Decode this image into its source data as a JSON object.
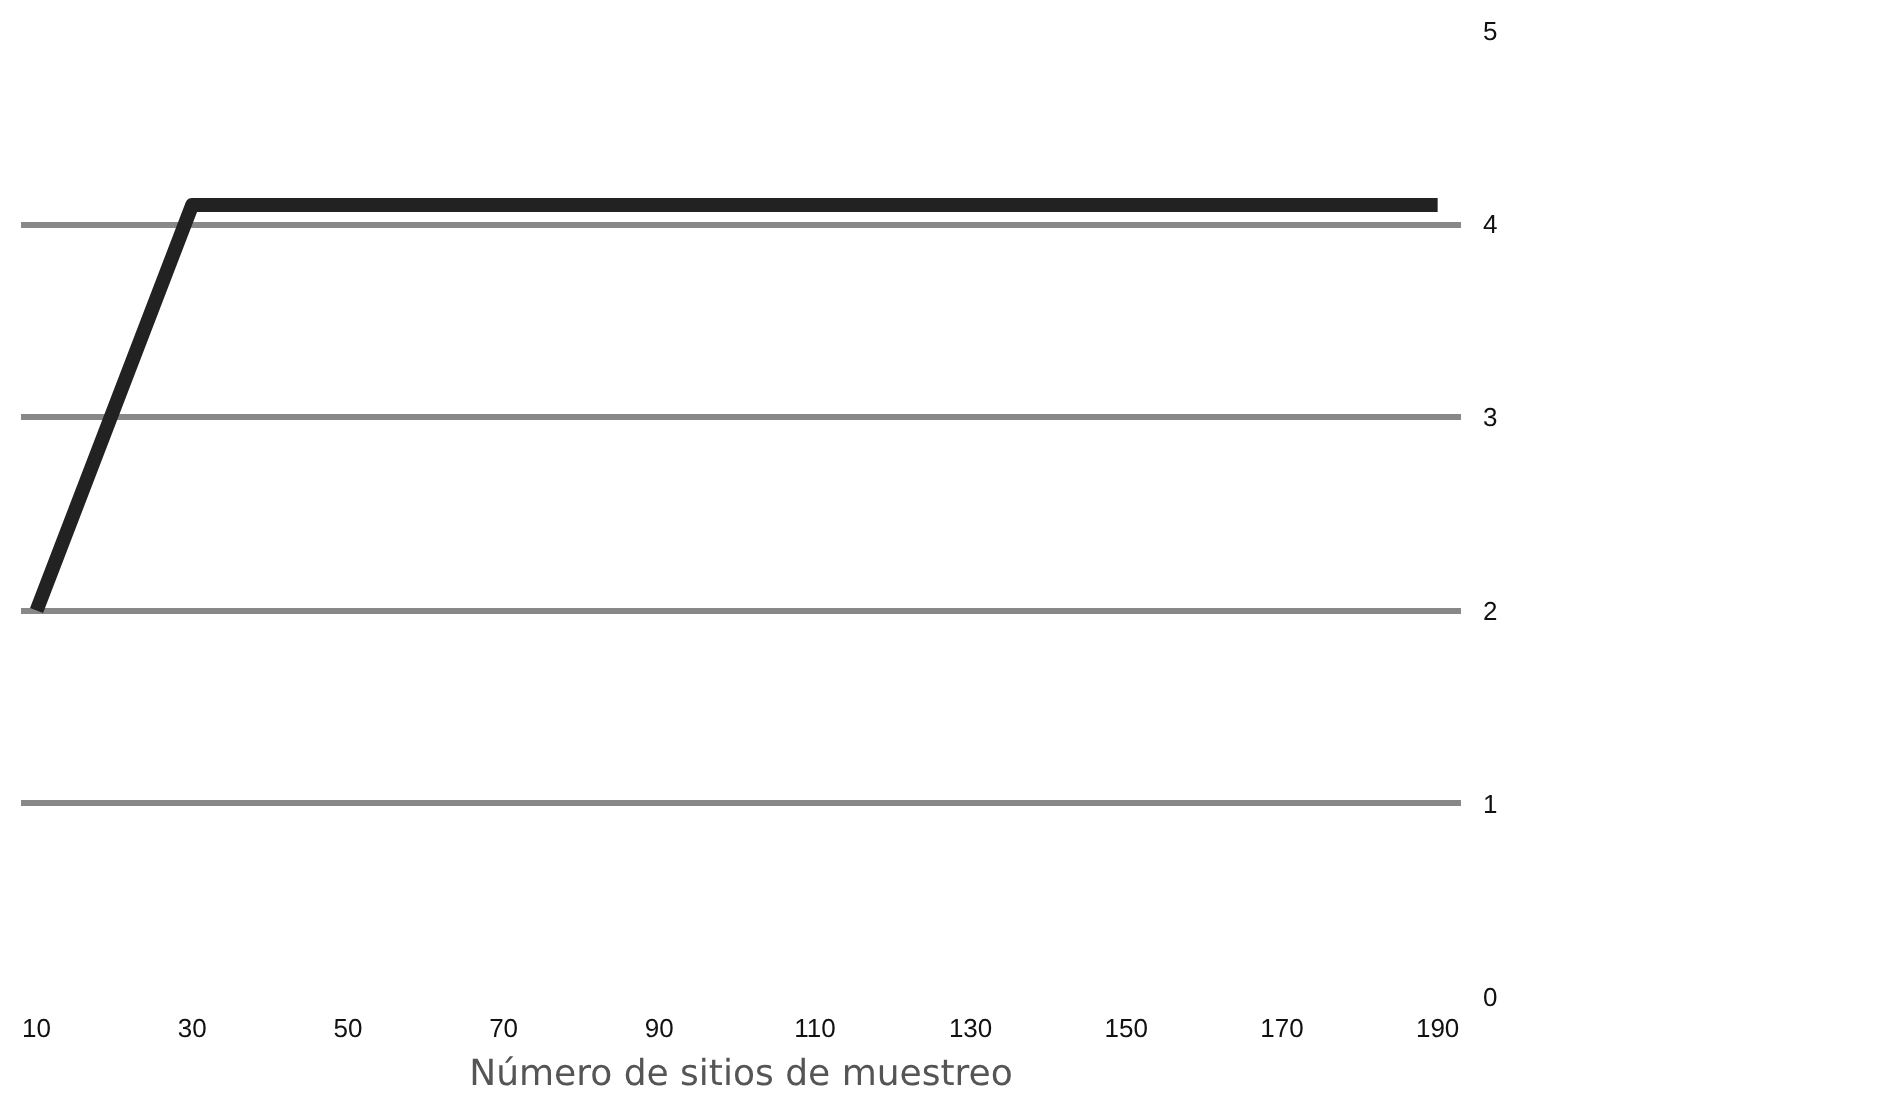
{
  "chart_data": {
    "type": "line",
    "xlabel": "Número de sitios de muestreo",
    "x": [
      10,
      30,
      190
    ],
    "series": [
      {
        "color": "#222222",
        "values": [
          2,
          4.1,
          4.1
        ]
      }
    ],
    "xlim": [
      8,
      193
    ],
    "ylim": [
      0,
      5
    ],
    "xticks": [
      10,
      30,
      50,
      70,
      90,
      110,
      130,
      150,
      170,
      190
    ],
    "yticks": [
      0,
      1,
      2,
      3,
      4,
      5
    ],
    "grid": "y",
    "marker": "none",
    "line_style": "solid"
  }
}
